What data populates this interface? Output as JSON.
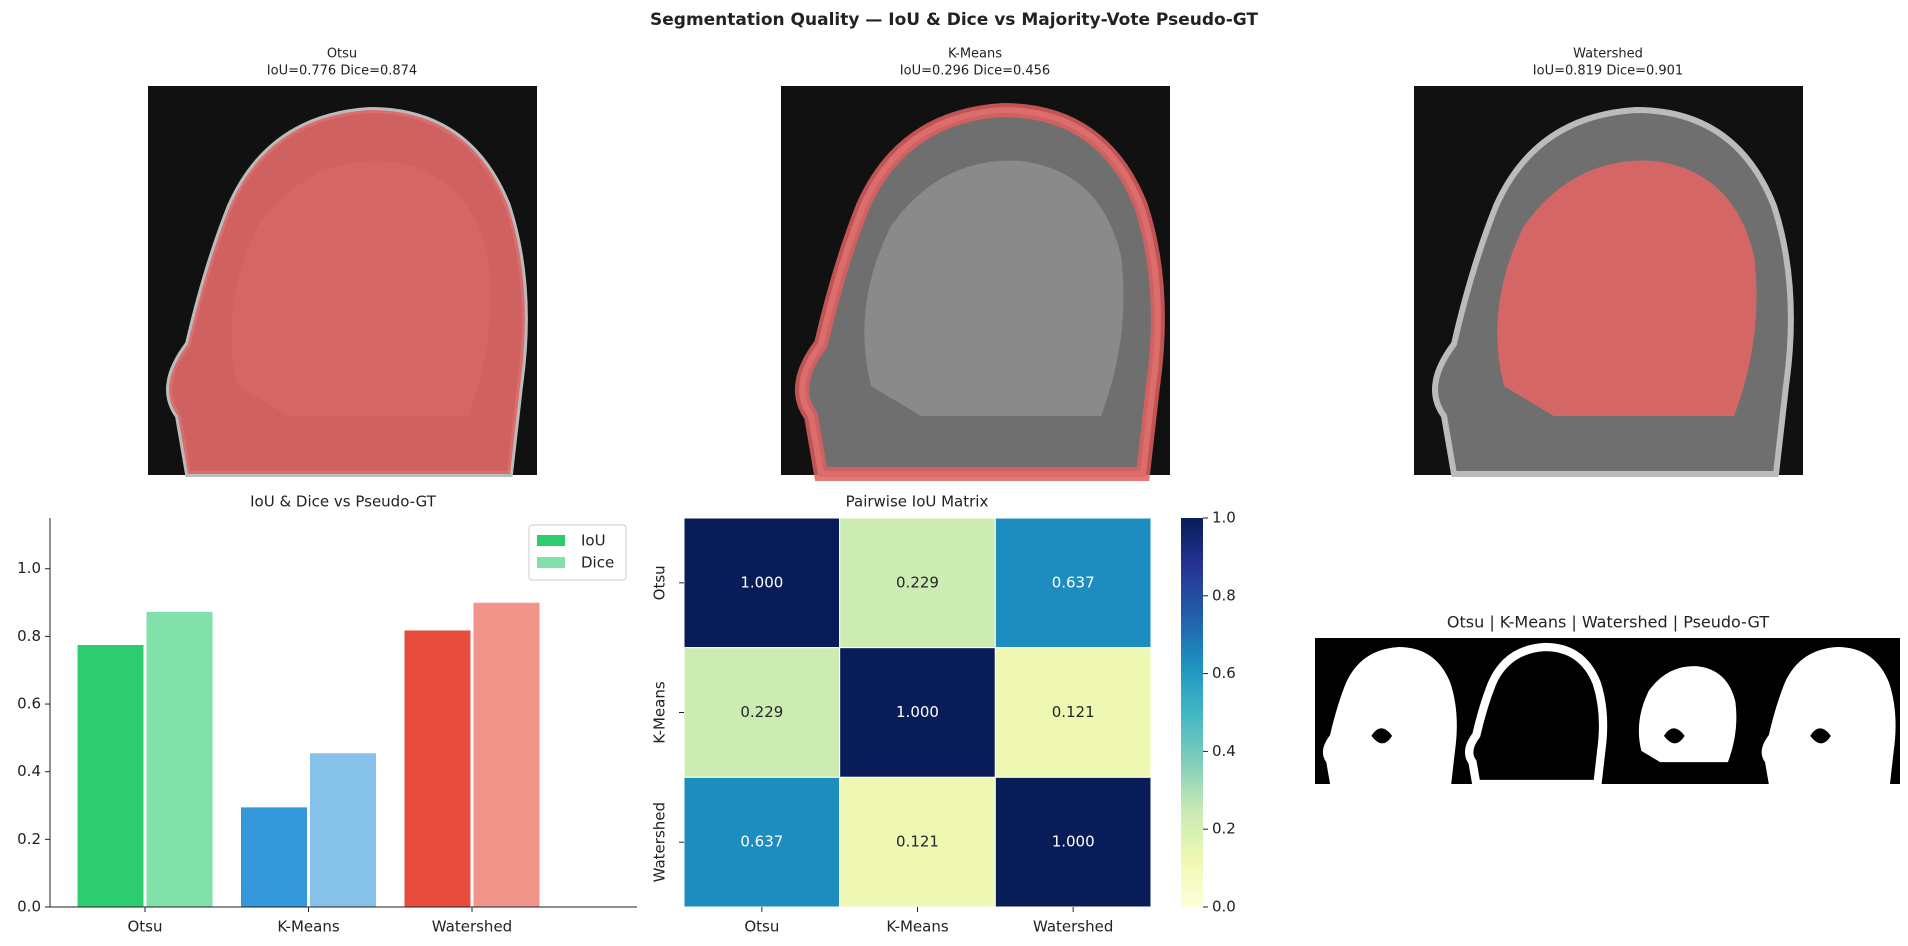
{
  "title": "Segmentation Quality — IoU & Dice vs Majority-Vote Pseudo-GT",
  "images": [
    {
      "title": "Otsu",
      "subtitle": "IoU=0.776  Dice=0.874"
    },
    {
      "title": "K-Means",
      "subtitle": "IoU=0.296  Dice=0.456"
    },
    {
      "title": "Watershed",
      "subtitle": "IoU=0.819  Dice=0.901"
    }
  ],
  "chart_data": [
    {
      "type": "bar",
      "title": "IoU & Dice vs Pseudo-GT",
      "categories": [
        "Otsu",
        "K-Means",
        "Watershed"
      ],
      "series": [
        {
          "name": "IoU",
          "color": "#2ecc71",
          "colors": [
            "#2ecc71",
            "#3498db",
            "#e74c3c"
          ],
          "values": [
            0.776,
            0.296,
            0.819
          ]
        },
        {
          "name": "Dice",
          "color": "#82e0aa",
          "colors": [
            "#82e0aa",
            "#85c1e9",
            "#f1948a"
          ],
          "values": [
            0.874,
            0.456,
            0.901
          ]
        }
      ],
      "ylim": [
        0,
        1.15
      ],
      "yticks": [
        {
          "value": 0,
          "label": "0.0"
        },
        {
          "value": 0.2,
          "label": "0.2"
        },
        {
          "value": 0.4,
          "label": "0.4"
        },
        {
          "value": 0.6,
          "label": "0.6"
        },
        {
          "value": 0.8,
          "label": "0.8"
        },
        {
          "value": 1,
          "label": "1.0"
        }
      ],
      "legend": "upper right",
      "grid": false
    },
    {
      "type": "heatmap",
      "title": "Pairwise IoU Matrix",
      "categories": [
        "Otsu",
        "K-Means",
        "Watershed"
      ],
      "y_categories": [
        "Otsu",
        "K-Means",
        "Watershed"
      ],
      "values": [
        [
          1,
          0.229,
          0.637
        ],
        [
          0.229,
          1,
          0.121
        ],
        [
          0.637,
          0.121,
          1
        ]
      ],
      "value_labels": [
        [
          "1.000",
          "0.229",
          "0.637"
        ],
        [
          "0.229",
          "1.000",
          "0.121"
        ],
        [
          "0.637",
          "0.121",
          "1.000"
        ]
      ],
      "colormap": "YlGnBu",
      "zlim": [
        0,
        1
      ],
      "zticks": [
        {
          "value": 0,
          "label": "0.0"
        },
        {
          "value": 0.2,
          "label": "0.2"
        },
        {
          "value": 0.4,
          "label": "0.4"
        },
        {
          "value": 0.6,
          "label": "0.6"
        },
        {
          "value": 0.8,
          "label": "0.8"
        },
        {
          "value": 1,
          "label": "1.0"
        }
      ]
    }
  ],
  "mask_panel": {
    "title": "Otsu | K-Means | Watershed | Pseudo-GT"
  }
}
